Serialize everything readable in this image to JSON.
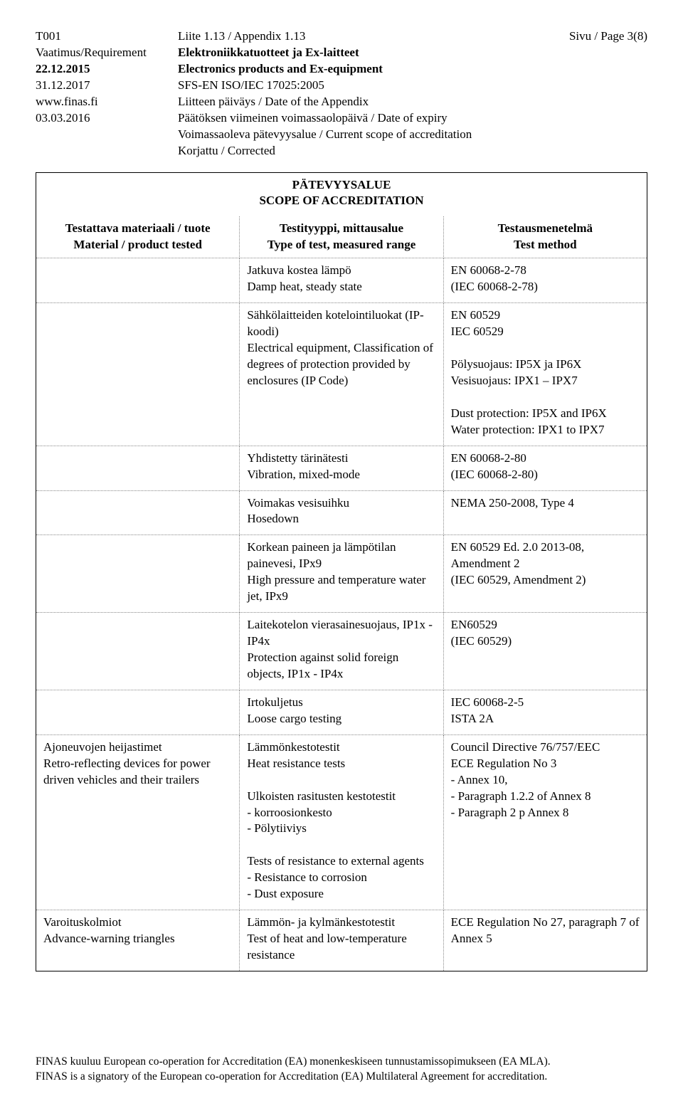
{
  "header": {
    "left": [
      "T001",
      "",
      "",
      "Vaatimus/Requirement",
      "22.12.2015",
      "31.12.2017",
      "www.finas.fi",
      "03.03.2016"
    ],
    "leftBold": [
      false,
      false,
      false,
      false,
      true,
      false,
      false,
      false
    ],
    "mid": [
      "Liite 1.13 / Appendix 1.13",
      "Elektroniikkatuotteet ja Ex-laitteet",
      "Electronics products and Ex-equipment",
      "SFS-EN ISO/IEC 17025:2005",
      "Liitteen päiväys / Date of the Appendix",
      "Päätöksen viimeinen voimassaolopäivä / Date of expiry",
      "Voimassaoleva pätevyysalue / Current scope of accreditation",
      "Korjattu / Corrected"
    ],
    "midBold": [
      false,
      true,
      true,
      false,
      false,
      false,
      false,
      false
    ],
    "right": "Sivu / Page 3(8)"
  },
  "tableTitle": {
    "line1": "PÄTEVYYSALUE",
    "line2": "SCOPE OF ACCREDITATION"
  },
  "columns": {
    "c1a": "Testattava materiaali / tuote",
    "c1b": "Material / product tested",
    "c2a": "Testityyppi, mittausalue",
    "c2b": "Type of test, measured range",
    "c3a": "Testausmenetelmä",
    "c3b": "Test method"
  },
  "rows": [
    {
      "c1": "",
      "c2": "Jatkuva kostea lämpö\nDamp heat, steady state",
      "c3": "EN 60068-2-78\n(IEC 60068-2-78)"
    },
    {
      "c1": "",
      "c2": "Sähkölaitteiden kotelointiluokat (IP-koodi)\nElectrical equipment, Classification of degrees of protection provided by enclosures (IP Code)",
      "c3": "EN 60529\nIEC 60529\n\nPölysuojaus: IP5X ja IP6X\nVesisuojaus: IPX1 – IPX7\n\nDust protection: IP5X and IP6X\nWater protection: IPX1 to IPX7"
    },
    {
      "c1": "",
      "c2": "Yhdistetty tärinätesti\nVibration, mixed-mode",
      "c3": "EN 60068-2-80\n(IEC 60068-2-80)"
    },
    {
      "c1": "",
      "c2": "Voimakas vesisuihku\nHosedown",
      "c3": "NEMA 250-2008, Type 4"
    },
    {
      "c1": "",
      "c2": "Korkean paineen ja lämpötilan painevesi, IPx9\nHigh pressure and temperature water jet, IPx9",
      "c3": "EN 60529 Ed. 2.0 2013-08, Amendment 2\n(IEC 60529, Amendment 2)"
    },
    {
      "c1": "",
      "c2": "Laitekotelon vierasainesuojaus, IP1x - IP4x\nProtection against solid foreign objects, IP1x - IP4x",
      "c3": "EN60529\n(IEC 60529)"
    },
    {
      "c1": "",
      "c2": "Irtokuljetus\nLoose cargo testing",
      "c3": "IEC 60068-2-5\nISTA 2A"
    },
    {
      "c1": "Ajoneuvojen heijastimet\nRetro-reflecting devices for power driven vehicles and their trailers",
      "c2": "Lämmönkestotestit\nHeat resistance tests\n\nUlkoisten rasitusten kestotestit\n- korroosionkesto\n- Pölytiiviys\n\nTests of resistance to external agents\n- Resistance to corrosion\n- Dust exposure",
      "c3": "Council Directive 76/757/EEC\nECE Regulation No 3\n- Annex 10,\n- Paragraph 1.2.2 of Annex 8\n- Paragraph 2 p Annex 8"
    },
    {
      "c1": "Varoituskolmiot\nAdvance-warning triangles",
      "c2": "Lämmön- ja kylmänkestotestit\nTest of heat and low-temperature resistance",
      "c3": "ECE Regulation No 27, paragraph 7 of Annex 5"
    }
  ],
  "footer": {
    "line1": "FINAS kuuluu European co-operation for Accreditation (EA) monenkeskiseen tunnustamissopimukseen (EA MLA).",
    "line2": "FINAS is a signatory of the European co-operation for Accreditation (EA) Multilateral Agreement for accreditation."
  }
}
